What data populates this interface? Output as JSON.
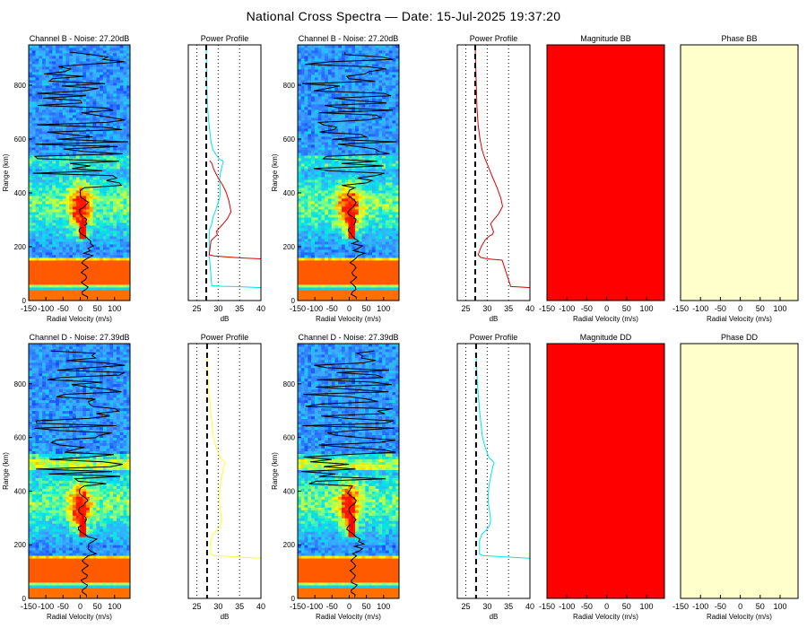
{
  "title": "National Cross Spectra — Date: 15-Jul-2025 19:37:20",
  "colors": {
    "magnitude": "#ff0000",
    "phase": "#ffffcc",
    "noise_line": "#000000"
  },
  "common": {
    "spectra_xlabel": "Radial Velocity (m/s)",
    "spectra_ylabel": "Range (km)",
    "profile_title": "Power Profile",
    "profile_xlabel": "dB",
    "spectra_xticks": [
      -150,
      -100,
      -50,
      0,
      50,
      100
    ],
    "profile_xticks": [
      25,
      30,
      35,
      40
    ],
    "range_ticks": [
      0,
      200,
      400,
      600,
      800
    ]
  },
  "chart_data": [
    {
      "type": "heatmap",
      "title": "Channel B - Noise: 27.20dB",
      "xlim": [
        -150,
        145
      ],
      "ylim": [
        0,
        950
      ],
      "grid": false
    },
    {
      "type": "line",
      "title": "Power Profile",
      "xlim": [
        23,
        40
      ],
      "ylim": [
        0,
        950
      ],
      "noise_db": 27.2,
      "series": [
        {
          "color": "#00e5e5",
          "x": [
            40,
            37,
            34,
            31,
            28.5,
            27.9,
            27.9,
            28,
            28.4,
            28.8,
            29.5,
            30.3,
            30.5,
            30.4,
            30.3,
            30.6,
            31,
            31.2,
            31,
            30.3,
            29.6,
            28.8,
            28.3,
            27.9,
            27.5,
            27.3,
            27.2
          ],
          "y": [
            48,
            50,
            52,
            53,
            55,
            170,
            240,
            265,
            280,
            310,
            340,
            380,
            400,
            420,
            450,
            480,
            505,
            515,
            520,
            525,
            540,
            560,
            590,
            650,
            720,
            820,
            940
          ]
        },
        {
          "color": "#dd0000",
          "x": [
            40,
            36,
            32,
            29,
            27.9,
            28.3,
            29.8,
            29.6,
            30,
            31,
            32.2,
            33,
            32.5,
            31.8,
            31,
            30.2,
            29.5,
            28.9,
            28.5,
            28
          ],
          "y": [
            155,
            158,
            162,
            166,
            170,
            222,
            245,
            257,
            265,
            282,
            305,
            330,
            370,
            405,
            430,
            450,
            470,
            490,
            510,
            520
          ]
        }
      ]
    },
    {
      "type": "heatmap",
      "title": "Channel B - Noise: 27.20dB",
      "xlim": [
        -150,
        145
      ],
      "ylim": [
        0,
        950
      ],
      "grid": false
    },
    {
      "type": "line",
      "title": "Power Profile",
      "xlim": [
        23,
        40
      ],
      "ylim": [
        0,
        950
      ],
      "noise_db": 27.2,
      "series": [
        {
          "color": "#dd0000",
          "x": [
            40,
            38,
            35.5,
            33.5,
            30,
            28.5,
            27.9,
            28,
            28.6,
            29.5,
            30.5,
            31.2,
            31.5,
            30.8,
            31.5,
            32.6,
            33.6,
            33.2,
            32.3,
            31.2,
            30.2,
            29.4,
            28.8,
            28.3,
            27.9,
            27.6,
            27.4,
            27.2
          ],
          "y": [
            48,
            50,
            52,
            150,
            155,
            160,
            170,
            175,
            200,
            225,
            240,
            245,
            255,
            285,
            300,
            320,
            350,
            380,
            420,
            460,
            500,
            530,
            560,
            600,
            650,
            720,
            820,
            940
          ]
        }
      ]
    },
    {
      "type": "heatmap",
      "title": "Magnitude BB",
      "xlim": [
        -150,
        145
      ],
      "ylim": [
        0,
        950
      ],
      "grid": false
    },
    {
      "type": "heatmap",
      "title": "Phase BB",
      "xlim": [
        -150,
        145
      ],
      "ylim": [
        0,
        950
      ],
      "grid": false
    },
    {
      "type": "heatmap",
      "title": "Channel D - Noise: 27.39dB",
      "xlim": [
        -150,
        145
      ],
      "ylim": [
        0,
        950
      ],
      "grid": false
    },
    {
      "type": "line",
      "title": "Power Profile",
      "xlim": [
        23,
        40
      ],
      "ylim": [
        0,
        950
      ],
      "noise_db": 27.39,
      "series": [
        {
          "color": "#ffff33",
          "x": [
            40,
            36,
            32,
            29,
            28.2,
            28.2,
            28.8,
            29.8,
            30.5,
            30.8,
            30.6,
            30.3,
            30.2,
            30.4,
            30.9,
            31.3,
            31.6,
            31.1,
            30.4,
            29.6,
            28.9,
            28.2,
            27.7,
            27.4
          ],
          "y": [
            150,
            153,
            157,
            160,
            165,
            215,
            240,
            255,
            270,
            290,
            320,
            350,
            380,
            420,
            460,
            490,
            505,
            515,
            525,
            560,
            600,
            700,
            800,
            900
          ]
        }
      ]
    },
    {
      "type": "heatmap",
      "title": "Channel D - Noise: 27.39dB",
      "xlim": [
        -150,
        145
      ],
      "ylim": [
        0,
        950
      ],
      "grid": false
    },
    {
      "type": "line",
      "title": "Power Profile",
      "xlim": [
        23,
        40
      ],
      "ylim": [
        0,
        950
      ],
      "noise_db": 27.39,
      "series": [
        {
          "color": "#00e5e5",
          "x": [
            40,
            36,
            32,
            29,
            28.2,
            28.2,
            28.8,
            29.8,
            30.5,
            30.8,
            30.6,
            30.3,
            30.2,
            30.4,
            30.9,
            31.3,
            31.6,
            31.1,
            30.4,
            29.6,
            28.9,
            28.2,
            27.7,
            27.4
          ],
          "y": [
            150,
            153,
            157,
            160,
            165,
            215,
            240,
            255,
            270,
            290,
            320,
            350,
            380,
            420,
            460,
            490,
            505,
            515,
            525,
            560,
            600,
            700,
            800,
            900
          ]
        }
      ]
    },
    {
      "type": "heatmap",
      "title": "Magnitude DD",
      "xlim": [
        -150,
        145
      ],
      "ylim": [
        0,
        950
      ],
      "grid": false
    },
    {
      "type": "heatmap",
      "title": "Phase DD",
      "xlim": [
        -150,
        145
      ],
      "ylim": [
        0,
        950
      ],
      "grid": false
    }
  ]
}
